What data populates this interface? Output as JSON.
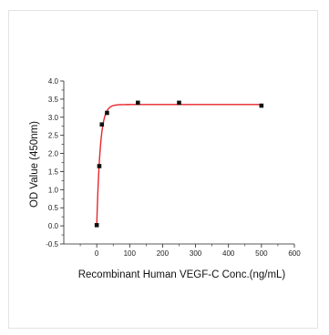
{
  "chart_data": {
    "type": "scatter",
    "title": "",
    "xlabel": "Recombinant Human VEGF-C Conc.(ng/mL)",
    "ylabel": "OD Value (450nm)",
    "xlim": [
      -100,
      600
    ],
    "ylim": [
      -0.5,
      4.0
    ],
    "x_ticks": [
      "0",
      "100",
      "200",
      "300",
      "400",
      "500",
      "600"
    ],
    "y_ticks": [
      "-0.5",
      "0.0",
      "0.5",
      "1.0",
      "1.5",
      "2.0",
      "2.5",
      "3.0",
      "3.5",
      "4.0"
    ],
    "series": [
      {
        "marker": "square",
        "x": [
          0,
          7.8,
          15.6,
          31.25,
          125,
          250,
          500
        ],
        "y": [
          0.02,
          1.65,
          2.8,
          3.12,
          3.4,
          3.4,
          3.32
        ]
      }
    ],
    "fit": {
      "type": "line",
      "plateau": 3.35,
      "rate": 0.095,
      "color": "#e8262a"
    },
    "colors": {
      "marker": "#111111",
      "fit": "#e8262a",
      "axis": "#222222"
    },
    "grid": false
  }
}
